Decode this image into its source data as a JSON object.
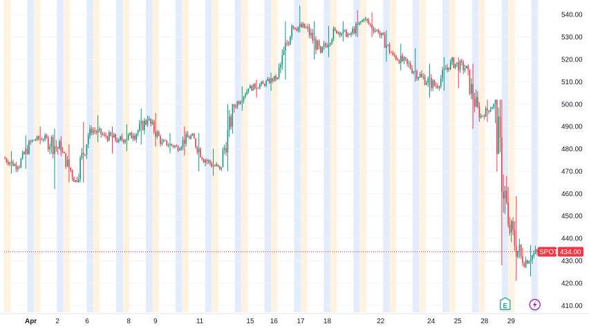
{
  "chart_data": {
    "type": "candlestick",
    "title": "",
    "xlabel": "",
    "ylabel": "",
    "ylim": [
      407,
      545
    ],
    "y_ticks": [
      410,
      420,
      430,
      440,
      450,
      460,
      470,
      480,
      490,
      500,
      510,
      520,
      530,
      540
    ],
    "y_tick_labels": [
      "410.00",
      "420.00",
      "430.00",
      "440.00",
      "450.00",
      "460.00",
      "470.00",
      "480.00",
      "490.00",
      "500.00",
      "510.00",
      "520.00",
      "530.00",
      "540.00"
    ],
    "x_tick_labels": [
      "Apr",
      "2",
      "6",
      "8",
      "9",
      "11",
      "15",
      "16",
      "17",
      "18",
      "22",
      "24",
      "25",
      "28",
      "29"
    ],
    "x_ticks_day_index": [
      0.9,
      1.8,
      2.8,
      4.2,
      5.1,
      6.6,
      8.3,
      9.1,
      10.0,
      10.9,
      12.7,
      14.4,
      15.3,
      16.2,
      17.1
    ],
    "series": [
      {
        "values": [
          [
            476,
            479,
            469,
            472
          ],
          [
            472,
            486,
            471,
            484
          ],
          [
            484,
            490,
            482,
            485
          ],
          [
            485,
            489,
            462,
            479
          ],
          [
            479,
            482,
            465,
            466
          ],
          [
            466,
            492,
            465,
            489
          ],
          [
            489,
            495,
            483,
            486
          ],
          [
            486,
            490,
            478,
            484
          ],
          [
            484,
            491,
            479,
            486
          ],
          [
            486,
            498,
            482,
            493
          ],
          [
            493,
            496,
            481,
            483
          ],
          [
            483,
            487,
            478,
            481
          ],
          [
            481,
            490,
            477,
            486
          ],
          [
            486,
            487,
            470,
            475
          ],
          [
            475,
            480,
            468,
            471
          ],
          [
            471,
            500,
            470,
            499
          ],
          [
            499,
            508,
            497,
            507
          ],
          [
            507,
            511,
            503,
            509
          ],
          [
            509,
            514,
            506,
            512
          ],
          [
            512,
            537,
            511,
            535
          ],
          [
            535,
            544,
            532,
            534
          ],
          [
            534,
            537,
            520,
            523
          ],
          [
            523,
            535,
            521,
            533
          ],
          [
            533,
            537,
            528,
            531
          ],
          [
            531,
            542,
            530,
            538
          ],
          [
            538,
            541,
            530,
            532
          ],
          [
            532,
            533,
            519,
            522
          ],
          [
            522,
            527,
            515,
            518
          ],
          [
            518,
            525,
            510,
            512
          ],
          [
            512,
            518,
            503,
            508
          ],
          [
            508,
            521,
            506,
            519
          ],
          [
            519,
            521,
            507,
            516
          ],
          [
            516,
            518,
            489,
            494
          ],
          [
            494,
            502,
            492,
            500
          ],
          [
            500,
            502,
            428,
            446
          ],
          [
            446,
            459,
            421,
            429
          ],
          [
            429,
            437,
            423,
            434
          ]
        ]
      }
    ],
    "up_color": "#089981",
    "down_color": "#f23645",
    "current_price": 434.0,
    "current_price_label": "434.00",
    "price_tag_label": "SPOT",
    "price_tag_color": "#f23645",
    "session_bands": {
      "pre_market": "#fff3e0",
      "after_hours": "#e3ecfd"
    },
    "grid": true,
    "event_markers": [
      {
        "icon": "earnings-e-icon",
        "label": "E",
        "day_index": 16.9,
        "color": "#22ab94"
      },
      {
        "icon": "lightning-icon",
        "day_index": 17.9,
        "color": "#9c27b0"
      }
    ]
  }
}
